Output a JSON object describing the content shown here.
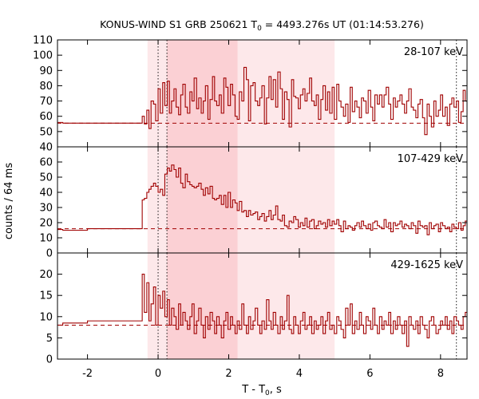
{
  "chart_data": {
    "type": "line",
    "title": {
      "prefix": "KONUS-WIND S1 GRB 250621 T",
      "sub": "0",
      "suffix": " = 4493.276s UT (01:14:53.276)"
    },
    "xlabel": {
      "prefix": "T - T",
      "sub": "0",
      "suffix": ", s"
    },
    "ylabel": "counts / 64 ms",
    "xlim": [
      -2.85,
      8.75
    ],
    "x_ticks": [
      -2,
      0,
      2,
      4,
      6,
      8
    ],
    "x_tick_labels": [
      "-2",
      "0",
      "2",
      "4",
      "6",
      "8"
    ],
    "grid": false,
    "colors": {
      "line": "#a00000",
      "shade_dark": "#fbd0d4",
      "shade_light": "#fde8ea",
      "axis": "#000000"
    },
    "shaded_intervals": [
      {
        "x0": -0.3,
        "x1": 5.0,
        "style": "light"
      },
      {
        "x0": 0.25,
        "x1": 2.25,
        "style": "dark"
      }
    ],
    "vertical_markers": [
      0.0,
      0.25,
      8.45
    ],
    "panels": [
      {
        "band_label": "28-107 keV",
        "ylim": [
          40,
          110
        ],
        "y_ticks": [
          40,
          50,
          60,
          70,
          80,
          90,
          100,
          110
        ],
        "y_tick_labels": [
          "40",
          "50",
          "60",
          "70",
          "80",
          "90",
          "100",
          "110"
        ],
        "background": 55.5,
        "series": {
          "pre_x": [
            -2.85,
            -2.7,
            -2.0,
            -0.45
          ],
          "pre_y": [
            56,
            55.5,
            55.5,
            55.5
          ],
          "x": [
            -0.5,
            -0.45,
            -0.39,
            -0.32,
            -0.26,
            -0.2,
            -0.13,
            -0.07,
            0.0,
            0.06,
            0.13,
            0.19,
            0.26,
            0.32,
            0.38,
            0.45,
            0.51,
            0.58,
            0.64,
            0.7,
            0.77,
            0.83,
            0.9,
            0.96,
            1.02,
            1.09,
            1.15,
            1.22,
            1.28,
            1.34,
            1.41,
            1.47,
            1.54,
            1.6,
            1.66,
            1.73,
            1.79,
            1.86,
            1.92,
            1.98,
            2.05,
            2.11,
            2.18,
            2.24,
            2.3,
            2.37,
            2.43,
            2.5,
            2.56,
            2.62,
            2.69,
            2.75,
            2.82,
            2.88,
            2.94,
            3.01,
            3.07,
            3.14,
            3.2,
            3.26,
            3.33,
            3.39,
            3.46,
            3.52,
            3.58,
            3.65,
            3.71,
            3.78,
            3.84,
            3.9,
            3.97,
            4.03,
            4.1,
            4.16,
            4.22,
            4.29,
            4.35,
            4.42,
            4.48,
            4.54,
            4.61,
            4.67,
            4.74,
            4.8,
            4.86,
            4.93,
            4.99,
            5.06,
            5.12,
            5.18,
            5.25,
            5.31,
            5.38,
            5.44,
            5.5,
            5.57,
            5.63,
            5.7,
            5.76,
            5.82,
            5.89,
            5.95,
            6.02,
            6.08,
            6.14,
            6.21,
            6.27,
            6.34,
            6.4,
            6.46,
            6.53,
            6.59,
            6.66,
            6.72,
            6.78,
            6.85,
            6.91,
            6.98,
            7.04,
            7.1,
            7.17,
            7.23,
            7.3,
            7.36,
            7.42,
            7.49,
            7.55,
            7.62,
            7.68,
            7.74,
            7.81,
            7.87,
            7.94,
            8.0,
            8.06,
            8.13,
            8.19,
            8.26,
            8.32,
            8.38,
            8.45,
            8.51,
            8.58,
            8.64,
            8.7
          ],
          "y": [
            55.5,
            60,
            55,
            64,
            52,
            70,
            68,
            57,
            78,
            62,
            82,
            67,
            83,
            62,
            70,
            78,
            66,
            61,
            74,
            81,
            66,
            62,
            76,
            70,
            85,
            65,
            72,
            62,
            70,
            80,
            58,
            71,
            86,
            70,
            67,
            74,
            62,
            85,
            79,
            67,
            81,
            74,
            60,
            58,
            76,
            70,
            92,
            84,
            57,
            80,
            82,
            70,
            67,
            72,
            80,
            55,
            72,
            86,
            71,
            84,
            66,
            89,
            78,
            58,
            76,
            71,
            53,
            84,
            73,
            72,
            65,
            74,
            78,
            70,
            75,
            85,
            70,
            67,
            74,
            58,
            71,
            80,
            64,
            76,
            62,
            79,
            58,
            81,
            70,
            66,
            60,
            68,
            56,
            79,
            63,
            70,
            66,
            59,
            72,
            70,
            62,
            77,
            66,
            57,
            74,
            68,
            74,
            66,
            74,
            79,
            68,
            58,
            72,
            66,
            70,
            74,
            68,
            62,
            70,
            78,
            66,
            64,
            59,
            68,
            71,
            59,
            48,
            68,
            60,
            53,
            70,
            60,
            64,
            74,
            60,
            66,
            54,
            68,
            72,
            66,
            70,
            56,
            63,
            77,
            70
          ]
        }
      },
      {
        "band_label": "107-429 keV",
        "ylim": [
          0,
          70
        ],
        "y_ticks": [
          0,
          10,
          20,
          30,
          40,
          50,
          60
        ],
        "y_tick_labels": [
          "0",
          "10",
          "20",
          "30",
          "40",
          "50",
          "60"
        ],
        "background": 16,
        "series": {
          "pre_x": [
            -2.85,
            -2.7,
            -2.0,
            -0.5
          ],
          "pre_y": [
            15.5,
            15,
            16,
            16
          ],
          "x": [
            -0.5,
            -0.45,
            -0.39,
            -0.32,
            -0.26,
            -0.2,
            -0.13,
            -0.07,
            0.0,
            0.06,
            0.13,
            0.19,
            0.26,
            0.32,
            0.38,
            0.45,
            0.51,
            0.58,
            0.64,
            0.7,
            0.77,
            0.83,
            0.9,
            0.96,
            1.02,
            1.09,
            1.15,
            1.22,
            1.28,
            1.34,
            1.41,
            1.47,
            1.54,
            1.6,
            1.66,
            1.73,
            1.79,
            1.86,
            1.92,
            1.98,
            2.05,
            2.11,
            2.18,
            2.24,
            2.3,
            2.37,
            2.43,
            2.5,
            2.56,
            2.62,
            2.69,
            2.75,
            2.82,
            2.88,
            2.94,
            3.01,
            3.07,
            3.14,
            3.2,
            3.26,
            3.33,
            3.39,
            3.46,
            3.52,
            3.58,
            3.65,
            3.71,
            3.78,
            3.84,
            3.9,
            3.97,
            4.03,
            4.1,
            4.16,
            4.22,
            4.29,
            4.35,
            4.42,
            4.48,
            4.54,
            4.61,
            4.67,
            4.74,
            4.8,
            4.86,
            4.93,
            4.99,
            5.06,
            5.12,
            5.18,
            5.25,
            5.31,
            5.38,
            5.44,
            5.5,
            5.57,
            5.63,
            5.7,
            5.76,
            5.82,
            5.89,
            5.95,
            6.02,
            6.08,
            6.14,
            6.21,
            6.27,
            6.34,
            6.4,
            6.46,
            6.53,
            6.59,
            6.66,
            6.72,
            6.78,
            6.85,
            6.91,
            6.98,
            7.04,
            7.1,
            7.17,
            7.23,
            7.3,
            7.36,
            7.42,
            7.49,
            7.55,
            7.62,
            7.68,
            7.74,
            7.81,
            7.87,
            7.94,
            8.0,
            8.06,
            8.13,
            8.19,
            8.26,
            8.32,
            8.38,
            8.45,
            8.51,
            8.58,
            8.64,
            8.7
          ],
          "y": [
            16,
            35,
            36,
            40,
            42,
            44,
            46,
            44,
            40,
            42,
            38,
            52,
            56,
            54,
            58,
            55,
            50,
            56,
            46,
            43,
            52,
            47,
            45,
            44,
            43,
            44,
            46,
            42,
            38,
            43,
            39,
            44,
            36,
            35,
            36,
            38,
            32,
            38,
            30,
            40,
            30,
            35,
            33,
            28,
            34,
            27,
            28,
            24,
            28,
            25,
            26,
            27,
            22,
            24,
            26,
            21,
            24,
            28,
            22,
            25,
            31,
            22,
            21,
            25,
            18,
            17,
            21,
            20,
            24,
            22,
            17,
            20,
            18,
            23,
            17,
            21,
            22,
            16,
            18,
            21,
            19,
            20,
            17,
            22,
            18,
            21,
            19,
            22,
            18,
            14,
            21,
            16,
            18,
            17,
            15,
            18,
            20,
            17,
            21,
            18,
            16,
            19,
            15,
            20,
            21,
            18,
            17,
            16,
            22,
            17,
            20,
            14,
            20,
            18,
            19,
            21,
            17,
            19,
            18,
            16,
            20,
            18,
            13,
            21,
            18,
            17,
            18,
            12,
            20,
            16,
            18,
            19,
            14,
            20,
            18,
            16,
            17,
            14,
            19,
            17,
            16,
            20,
            15,
            18,
            21
          ]
        }
      },
      {
        "band_label": "429-1625 keV",
        "ylim": [
          0,
          25
        ],
        "y_ticks": [
          0,
          5,
          10,
          15,
          20
        ],
        "y_tick_labels": [
          "0",
          "5",
          "10",
          "15",
          "20"
        ],
        "background": 8,
        "series": {
          "pre_x": [
            -2.85,
            -2.7,
            -2.0,
            -0.5
          ],
          "pre_y": [
            8,
            8.5,
            9,
            9
          ],
          "x": [
            -0.5,
            -0.45,
            -0.39,
            -0.32,
            -0.26,
            -0.2,
            -0.13,
            -0.07,
            0.0,
            0.06,
            0.13,
            0.19,
            0.26,
            0.32,
            0.38,
            0.45,
            0.51,
            0.58,
            0.64,
            0.7,
            0.77,
            0.83,
            0.9,
            0.96,
            1.02,
            1.09,
            1.15,
            1.22,
            1.28,
            1.34,
            1.41,
            1.47,
            1.54,
            1.6,
            1.66,
            1.73,
            1.79,
            1.86,
            1.92,
            1.98,
            2.05,
            2.11,
            2.18,
            2.24,
            2.3,
            2.37,
            2.43,
            2.5,
            2.56,
            2.62,
            2.69,
            2.75,
            2.82,
            2.88,
            2.94,
            3.01,
            3.07,
            3.14,
            3.2,
            3.26,
            3.33,
            3.39,
            3.46,
            3.52,
            3.58,
            3.65,
            3.71,
            3.78,
            3.84,
            3.9,
            3.97,
            4.03,
            4.1,
            4.16,
            4.22,
            4.29,
            4.35,
            4.42,
            4.48,
            4.54,
            4.61,
            4.67,
            4.74,
            4.8,
            4.86,
            4.93,
            4.99,
            5.06,
            5.12,
            5.18,
            5.25,
            5.31,
            5.38,
            5.44,
            5.5,
            5.57,
            5.63,
            5.7,
            5.76,
            5.82,
            5.89,
            5.95,
            6.02,
            6.08,
            6.14,
            6.21,
            6.27,
            6.34,
            6.4,
            6.46,
            6.53,
            6.59,
            6.66,
            6.72,
            6.78,
            6.85,
            6.91,
            6.98,
            7.04,
            7.1,
            7.17,
            7.23,
            7.3,
            7.36,
            7.42,
            7.49,
            7.55,
            7.62,
            7.68,
            7.74,
            7.81,
            7.87,
            7.94,
            8.0,
            8.06,
            8.13,
            8.19,
            8.26,
            8.32,
            8.38,
            8.45,
            8.51,
            8.58,
            8.64,
            8.7
          ],
          "y": [
            9,
            20,
            11,
            18,
            9,
            13,
            17,
            8,
            15,
            12,
            16,
            10,
            14,
            8,
            12,
            10,
            7,
            13,
            8,
            11,
            9,
            7,
            10,
            13,
            6,
            9,
            12,
            8,
            5,
            10,
            7,
            11,
            9,
            6,
            10,
            8,
            5,
            9,
            11,
            7,
            10,
            8,
            6,
            9,
            7,
            13,
            8,
            6,
            10,
            7,
            9,
            12,
            8,
            6,
            9,
            7,
            14,
            9,
            7,
            11,
            8,
            6,
            10,
            7,
            9,
            15,
            7,
            6,
            10,
            8,
            6,
            9,
            11,
            7,
            8,
            10,
            6,
            9,
            7,
            8,
            10,
            6,
            9,
            11,
            7,
            8,
            6,
            10,
            9,
            7,
            5,
            12,
            8,
            13,
            6,
            9,
            7,
            11,
            8,
            6,
            10,
            9,
            7,
            12,
            8,
            6,
            10,
            7,
            9,
            8,
            11,
            6,
            9,
            7,
            10,
            8,
            6,
            9,
            3,
            10,
            8,
            7,
            9,
            6,
            10,
            8,
            7,
            5,
            9,
            10,
            8,
            6,
            7,
            9,
            8,
            10,
            7,
            9,
            6,
            10,
            9,
            8,
            7,
            10,
            11
          ]
        }
      }
    ]
  }
}
